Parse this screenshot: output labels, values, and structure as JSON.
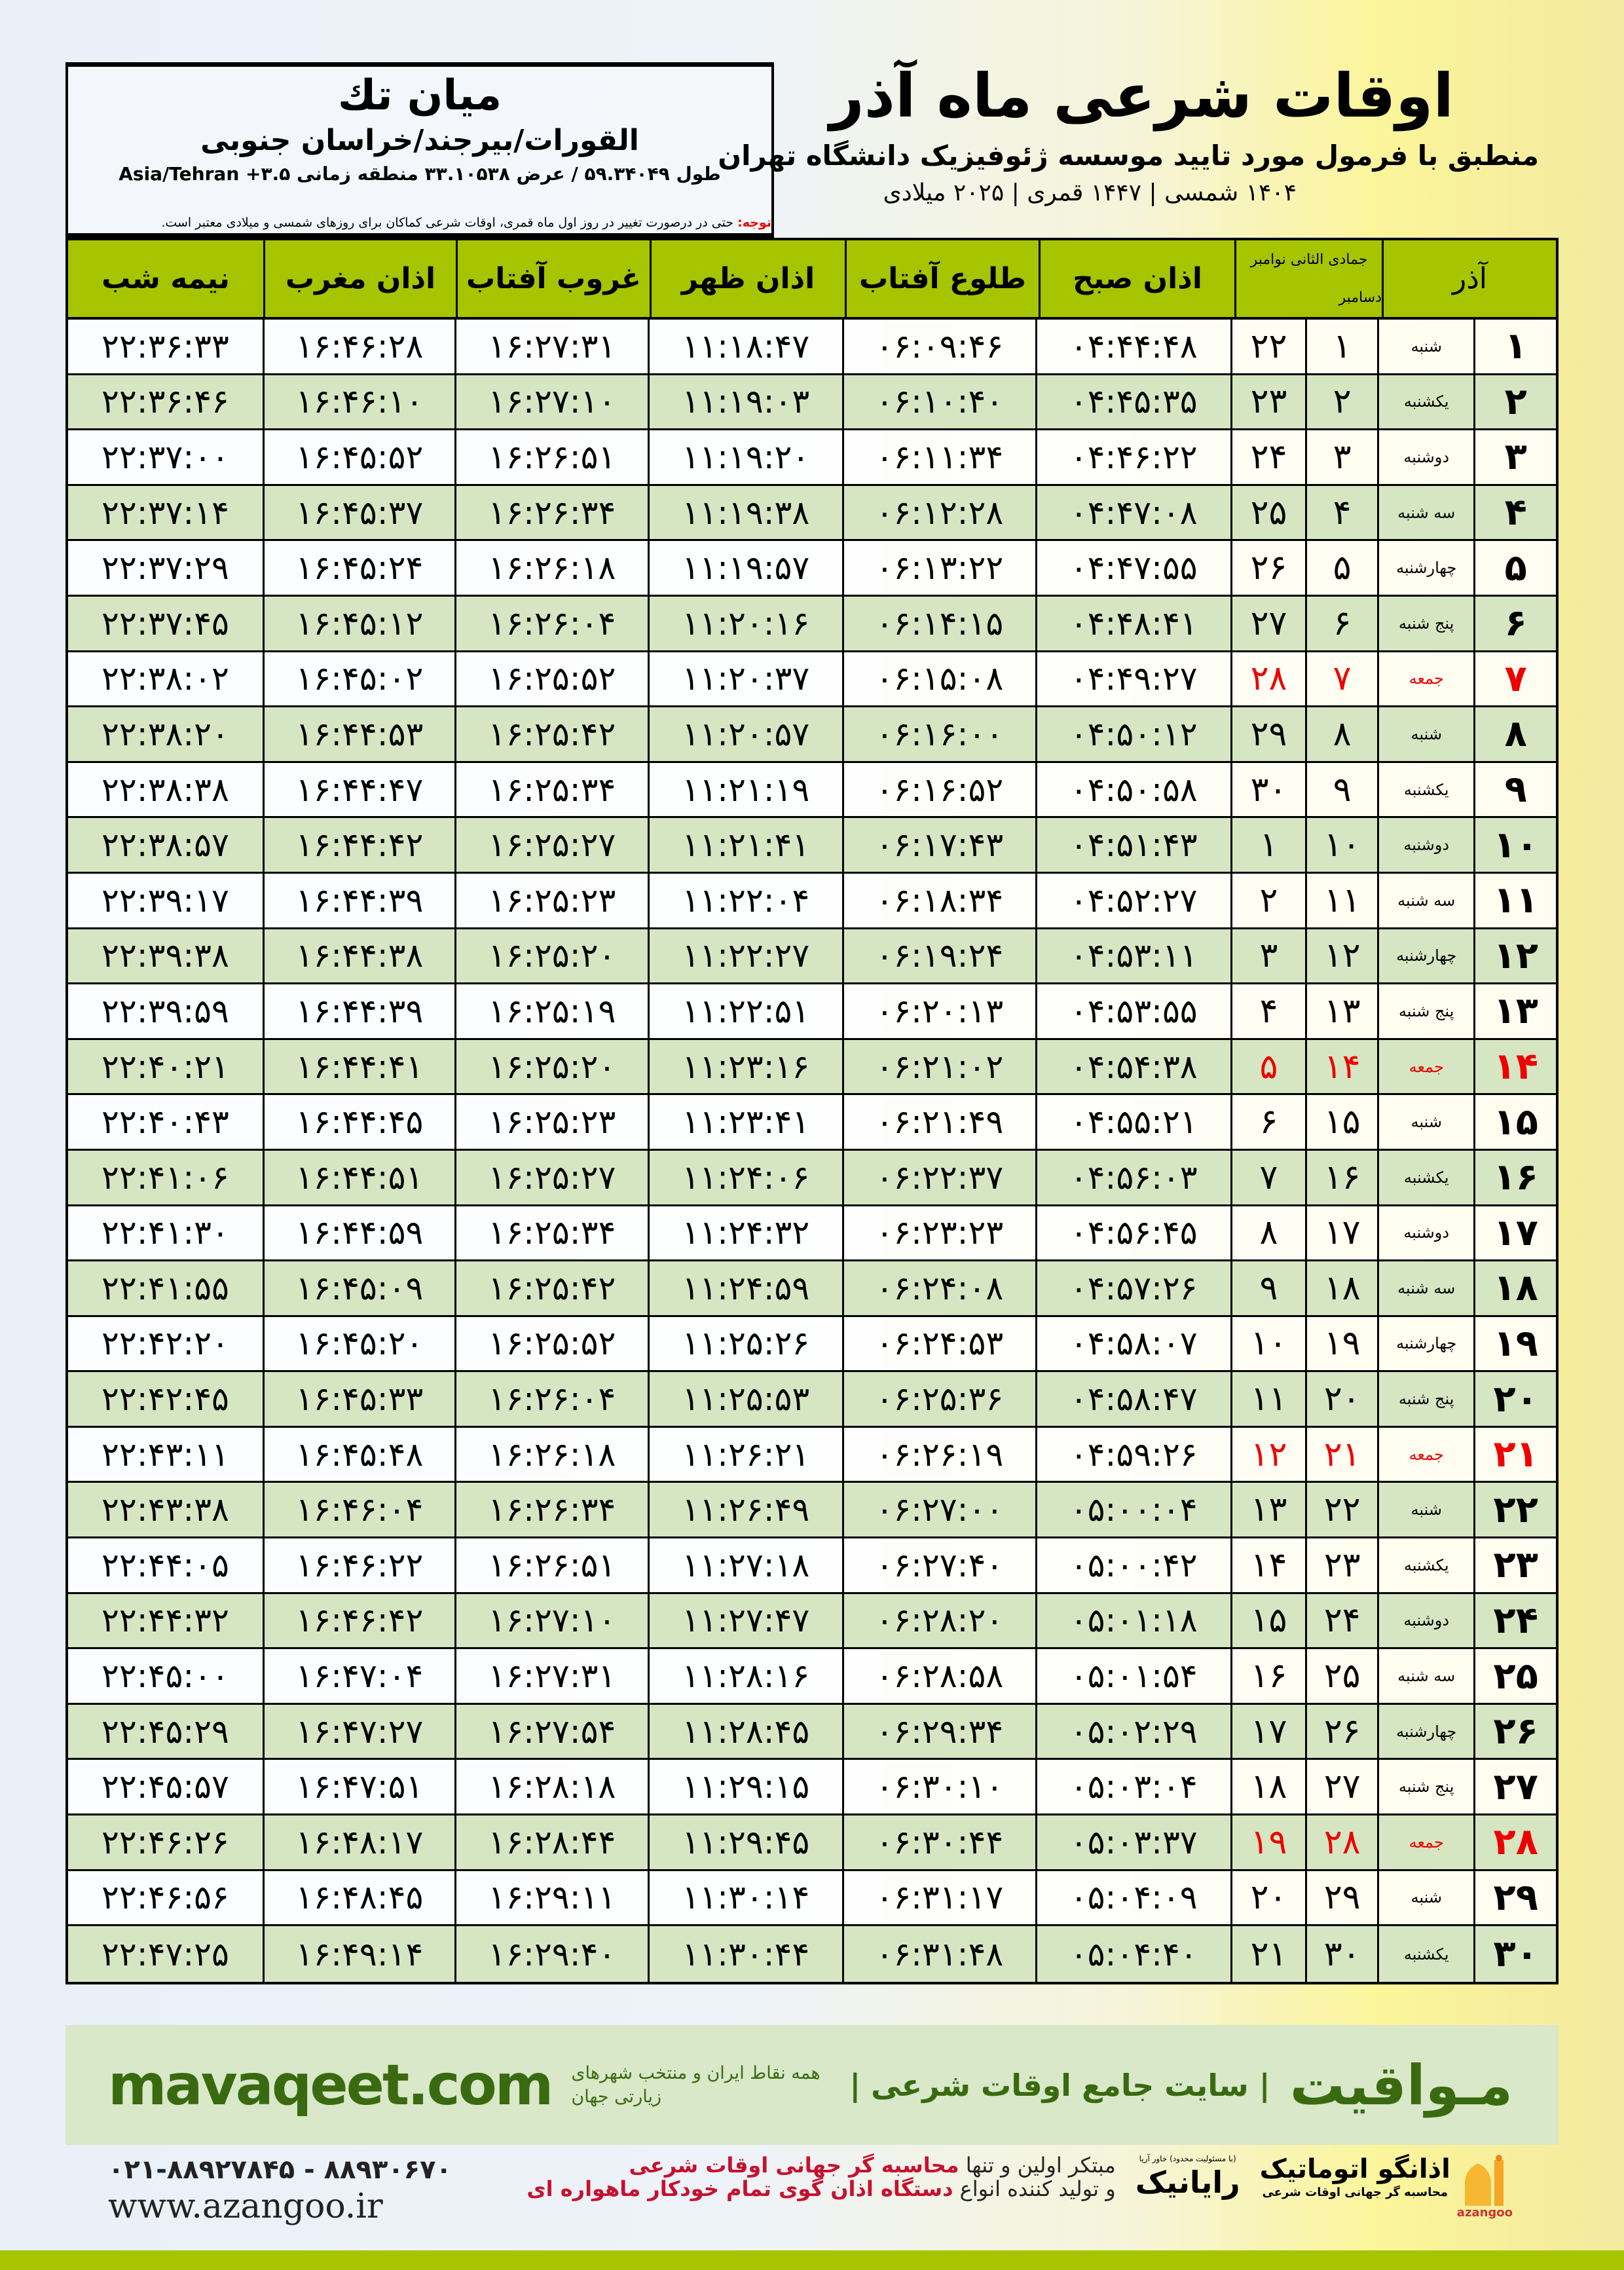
{
  "location": {
    "name": "میان تك",
    "path": "القورات/بیرجند/خراسان جنوبی",
    "coords": "طول ۵۹.۳۴۰۴۹ / عرض ۳۳.۱۰۵۳۸ منطقه زمانی ۳.۵+ Asia/Tehran"
  },
  "header": {
    "title": "اوقات شرعی ماه آذر",
    "subtitle": "منطبق با فرمول مورد تایید موسسه ژئوفیزیک دانشگاه تهران",
    "years": "۱۴۰۴ شمسی | ۱۴۴۷ قمری | ۲۰۲۵ میلادی"
  },
  "note": {
    "label": "توجه:",
    "text": " حتی در درصورت تغییر در روز اول ماه قمری، اوقات شرعی کماکان برای روزهای شمسی و میلادی معتبر است."
  },
  "table": {
    "headers": {
      "nime": "نیمه شب",
      "maghrib": "اذان مغرب",
      "ghurub": "غروب آفتاب",
      "zohr": "اذان ظهر",
      "tolu": "طلوع آفتاب",
      "sobh": "اذان صبح",
      "hijri_month": "جمادی الثانی",
      "greg_month_1": "نوامبر",
      "greg_month_2": "دسامبر",
      "azar": "آذر"
    },
    "friday_color": "#e00000",
    "header_color": "#a6c400",
    "row_alt_color": "#d6e6c3",
    "rows": [
      [
        "۱",
        "شنبه",
        "۱",
        "۲۲",
        "۰۴:۴۴:۴۸",
        "۰۶:۰۹:۴۶",
        "۱۱:۱۸:۴۷",
        "۱۶:۲۷:۳۱",
        "۱۶:۴۶:۲۸",
        "۲۲:۳۶:۳۳"
      ],
      [
        "۲",
        "یکشنبه",
        "۲",
        "۲۳",
        "۰۴:۴۵:۳۵",
        "۰۶:۱۰:۴۰",
        "۱۱:۱۹:۰۳",
        "۱۶:۲۷:۱۰",
        "۱۶:۴۶:۱۰",
        "۲۲:۳۶:۴۶"
      ],
      [
        "۳",
        "دوشنبه",
        "۳",
        "۲۴",
        "۰۴:۴۶:۲۲",
        "۰۶:۱۱:۳۴",
        "۱۱:۱۹:۲۰",
        "۱۶:۲۶:۵۱",
        "۱۶:۴۵:۵۲",
        "۲۲:۳۷:۰۰"
      ],
      [
        "۴",
        "سه شنبه",
        "۴",
        "۲۵",
        "۰۴:۴۷:۰۸",
        "۰۶:۱۲:۲۸",
        "۱۱:۱۹:۳۸",
        "۱۶:۲۶:۳۴",
        "۱۶:۴۵:۳۷",
        "۲۲:۳۷:۱۴"
      ],
      [
        "۵",
        "چهارشنبه",
        "۵",
        "۲۶",
        "۰۴:۴۷:۵۵",
        "۰۶:۱۳:۲۲",
        "۱۱:۱۹:۵۷",
        "۱۶:۲۶:۱۸",
        "۱۶:۴۵:۲۴",
        "۲۲:۳۷:۲۹"
      ],
      [
        "۶",
        "پنج شنبه",
        "۶",
        "۲۷",
        "۰۴:۴۸:۴۱",
        "۰۶:۱۴:۱۵",
        "۱۱:۲۰:۱۶",
        "۱۶:۲۶:۰۴",
        "۱۶:۴۵:۱۲",
        "۲۲:۳۷:۴۵"
      ],
      [
        "۷",
        "جمعه",
        "۷",
        "۲۸",
        "۰۴:۴۹:۲۷",
        "۰۶:۱۵:۰۸",
        "۱۱:۲۰:۳۷",
        "۱۶:۲۵:۵۲",
        "۱۶:۴۵:۰۲",
        "۲۲:۳۸:۰۲"
      ],
      [
        "۸",
        "شنبه",
        "۸",
        "۲۹",
        "۰۴:۵۰:۱۲",
        "۰۶:۱۶:۰۰",
        "۱۱:۲۰:۵۷",
        "۱۶:۲۵:۴۲",
        "۱۶:۴۴:۵۳",
        "۲۲:۳۸:۲۰"
      ],
      [
        "۹",
        "یکشنبه",
        "۹",
        "۳۰",
        "۰۴:۵۰:۵۸",
        "۰۶:۱۶:۵۲",
        "۱۱:۲۱:۱۹",
        "۱۶:۲۵:۳۴",
        "۱۶:۴۴:۴۷",
        "۲۲:۳۸:۳۸"
      ],
      [
        "۱۰",
        "دوشنبه",
        "۱۰",
        "۱",
        "۰۴:۵۱:۴۳",
        "۰۶:۱۷:۴۳",
        "۱۱:۲۱:۴۱",
        "۱۶:۲۵:۲۷",
        "۱۶:۴۴:۴۲",
        "۲۲:۳۸:۵۷"
      ],
      [
        "۱۱",
        "سه شنبه",
        "۱۱",
        "۲",
        "۰۴:۵۲:۲۷",
        "۰۶:۱۸:۳۴",
        "۱۱:۲۲:۰۴",
        "۱۶:۲۵:۲۳",
        "۱۶:۴۴:۳۹",
        "۲۲:۳۹:۱۷"
      ],
      [
        "۱۲",
        "چهارشنبه",
        "۱۲",
        "۳",
        "۰۴:۵۳:۱۱",
        "۰۶:۱۹:۲۴",
        "۱۱:۲۲:۲۷",
        "۱۶:۲۵:۲۰",
        "۱۶:۴۴:۳۸",
        "۲۲:۳۹:۳۸"
      ],
      [
        "۱۳",
        "پنج شنبه",
        "۱۳",
        "۴",
        "۰۴:۵۳:۵۵",
        "۰۶:۲۰:۱۳",
        "۱۱:۲۲:۵۱",
        "۱۶:۲۵:۱۹",
        "۱۶:۴۴:۳۹",
        "۲۲:۳۹:۵۹"
      ],
      [
        "۱۴",
        "جمعه",
        "۱۴",
        "۵",
        "۰۴:۵۴:۳۸",
        "۰۶:۲۱:۰۲",
        "۱۱:۲۳:۱۶",
        "۱۶:۲۵:۲۰",
        "۱۶:۴۴:۴۱",
        "۲۲:۴۰:۲۱"
      ],
      [
        "۱۵",
        "شنبه",
        "۱۵",
        "۶",
        "۰۴:۵۵:۲۱",
        "۰۶:۲۱:۴۹",
        "۱۱:۲۳:۴۱",
        "۱۶:۲۵:۲۳",
        "۱۶:۴۴:۴۵",
        "۲۲:۴۰:۴۳"
      ],
      [
        "۱۶",
        "یکشنبه",
        "۱۶",
        "۷",
        "۰۴:۵۶:۰۳",
        "۰۶:۲۲:۳۷",
        "۱۱:۲۴:۰۶",
        "۱۶:۲۵:۲۷",
        "۱۶:۴۴:۵۱",
        "۲۲:۴۱:۰۶"
      ],
      [
        "۱۷",
        "دوشنبه",
        "۱۷",
        "۸",
        "۰۴:۵۶:۴۵",
        "۰۶:۲۳:۲۳",
        "۱۱:۲۴:۳۲",
        "۱۶:۲۵:۳۴",
        "۱۶:۴۴:۵۹",
        "۲۲:۴۱:۳۰"
      ],
      [
        "۱۸",
        "سه شنبه",
        "۱۸",
        "۹",
        "۰۴:۵۷:۲۶",
        "۰۶:۲۴:۰۸",
        "۱۱:۲۴:۵۹",
        "۱۶:۲۵:۴۲",
        "۱۶:۴۵:۰۹",
        "۲۲:۴۱:۵۵"
      ],
      [
        "۱۹",
        "چهارشنبه",
        "۱۹",
        "۱۰",
        "۰۴:۵۸:۰۷",
        "۰۶:۲۴:۵۳",
        "۱۱:۲۵:۲۶",
        "۱۶:۲۵:۵۲",
        "۱۶:۴۵:۲۰",
        "۲۲:۴۲:۲۰"
      ],
      [
        "۲۰",
        "پنج شنبه",
        "۲۰",
        "۱۱",
        "۰۴:۵۸:۴۷",
        "۰۶:۲۵:۳۶",
        "۱۱:۲۵:۵۳",
        "۱۶:۲۶:۰۴",
        "۱۶:۴۵:۳۳",
        "۲۲:۴۲:۴۵"
      ],
      [
        "۲۱",
        "جمعه",
        "۲۱",
        "۱۲",
        "۰۴:۵۹:۲۶",
        "۰۶:۲۶:۱۹",
        "۱۱:۲۶:۲۱",
        "۱۶:۲۶:۱۸",
        "۱۶:۴۵:۴۸",
        "۲۲:۴۳:۱۱"
      ],
      [
        "۲۲",
        "شنبه",
        "۲۲",
        "۱۳",
        "۰۵:۰۰:۰۴",
        "۰۶:۲۷:۰۰",
        "۱۱:۲۶:۴۹",
        "۱۶:۲۶:۳۴",
        "۱۶:۴۶:۰۴",
        "۲۲:۴۳:۳۸"
      ],
      [
        "۲۳",
        "یکشنبه",
        "۲۳",
        "۱۴",
        "۰۵:۰۰:۴۲",
        "۰۶:۲۷:۴۰",
        "۱۱:۲۷:۱۸",
        "۱۶:۲۶:۵۱",
        "۱۶:۴۶:۲۲",
        "۲۲:۴۴:۰۵"
      ],
      [
        "۲۴",
        "دوشنبه",
        "۲۴",
        "۱۵",
        "۰۵:۰۱:۱۸",
        "۰۶:۲۸:۲۰",
        "۱۱:۲۷:۴۷",
        "۱۶:۲۷:۱۰",
        "۱۶:۴۶:۴۲",
        "۲۲:۴۴:۳۲"
      ],
      [
        "۲۵",
        "سه شنبه",
        "۲۵",
        "۱۶",
        "۰۵:۰۱:۵۴",
        "۰۶:۲۸:۵۸",
        "۱۱:۲۸:۱۶",
        "۱۶:۲۷:۳۱",
        "۱۶:۴۷:۰۴",
        "۲۲:۴۵:۰۰"
      ],
      [
        "۲۶",
        "چهارشنبه",
        "۲۶",
        "۱۷",
        "۰۵:۰۲:۲۹",
        "۰۶:۲۹:۳۴",
        "۱۱:۲۸:۴۵",
        "۱۶:۲۷:۵۴",
        "۱۶:۴۷:۲۷",
        "۲۲:۴۵:۲۹"
      ],
      [
        "۲۷",
        "پنج شنبه",
        "۲۷",
        "۱۸",
        "۰۵:۰۳:۰۴",
        "۰۶:۳۰:۱۰",
        "۱۱:۲۹:۱۵",
        "۱۶:۲۸:۱۸",
        "۱۶:۴۷:۵۱",
        "۲۲:۴۵:۵۷"
      ],
      [
        "۲۸",
        "جمعه",
        "۲۸",
        "۱۹",
        "۰۵:۰۳:۳۷",
        "۰۶:۳۰:۴۴",
        "۱۱:۲۹:۴۵",
        "۱۶:۲۸:۴۴",
        "۱۶:۴۸:۱۷",
        "۲۲:۴۶:۲۶"
      ],
      [
        "۲۹",
        "شنبه",
        "۲۹",
        "۲۰",
        "۰۵:۰۴:۰۹",
        "۰۶:۳۱:۱۷",
        "۱۱:۳۰:۱۴",
        "۱۶:۲۹:۱۱",
        "۱۶:۴۸:۴۵",
        "۲۲:۴۶:۵۶"
      ],
      [
        "۳۰",
        "یکشنبه",
        "۳۰",
        "۲۱",
        "۰۵:۰۴:۴۰",
        "۰۶:۳۱:۴۸",
        "۱۱:۳۰:۴۴",
        "۱۶:۲۹:۴۰",
        "۱۶:۴۹:۱۴",
        "۲۲:۴۷:۲۵"
      ]
    ]
  },
  "footer": {
    "site": "mavaqeet.com",
    "brand": "مـواقیت",
    "slogan": "| سایت جامع اوقات شرعی |",
    "sub_slogan": "همه نقاط ایران و منتخب شهرهای زیارتی جهان",
    "phone": "۰۲۱-۸۸۹۲۷۸۴۵ - ۸۸۹۳۰۶۷۰",
    "web": "www.azangoo.ir",
    "ad_line1_a": "مبتکر اولین و تنها ",
    "ad_line1_b": "محاسبه گر جهانی اوقات شرعی",
    "ad_line2_a": "و تولید کننده انواع ",
    "ad_line2_b": "دستگاه اذان گوی تمام خودکار ماهواره ای",
    "rayanik": "رایانیک",
    "rayanik_sub": "(با مسئولیت محدود) خاور آریا",
    "azangoo_name": "اذانگو اتوماتیک",
    "azangoo_tag": "محاسبه گر جهانی اوقات شرعی",
    "azangoo_en": "azangoo",
    "brand_color": "#3a6a10",
    "accent_red": "#c8102e"
  }
}
